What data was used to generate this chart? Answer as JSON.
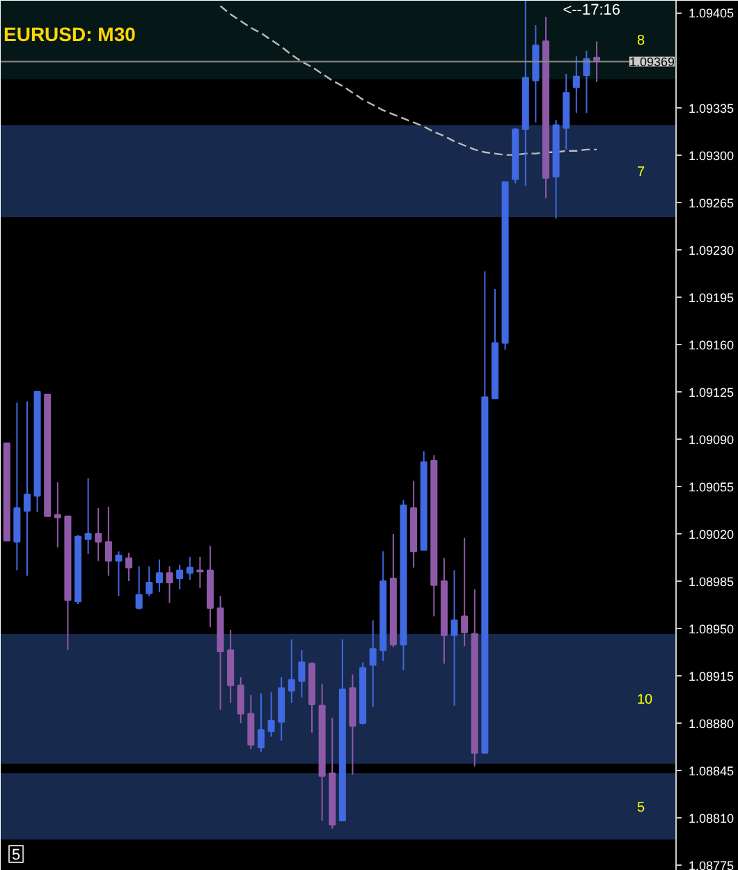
{
  "chart_data": {
    "type": "candlestick",
    "title": "EURUSD: M30",
    "categories": [
      null,
      null,
      null,
      null,
      null,
      null,
      null,
      null,
      null,
      null,
      null,
      null,
      null,
      null,
      null,
      null,
      null,
      null,
      null,
      null,
      null,
      null,
      null,
      null,
      null,
      null,
      null,
      null,
      null,
      null,
      null,
      null,
      null,
      null,
      null,
      null,
      null,
      null,
      null,
      null,
      null,
      null,
      null,
      null,
      null,
      null,
      null,
      null,
      null,
      null,
      null,
      null,
      null,
      null,
      null,
      null,
      null,
      null,
      null
    ],
    "series": [
      {
        "type": "candlestick",
        "ohlc": [
          [
            1.09087,
            1.09087,
            1.09015,
            1.09015
          ],
          [
            1.09014,
            1.09117,
            1.08993,
            1.09039
          ],
          [
            1.09037,
            1.09118,
            1.08989,
            1.09049
          ],
          [
            1.09048,
            1.09125,
            1.09036,
            1.09125
          ],
          [
            1.09123,
            1.09123,
            1.09033,
            1.09033
          ],
          [
            1.09034,
            1.09058,
            1.0901,
            1.09032
          ],
          [
            1.09033,
            1.09033,
            1.08934,
            1.08971
          ],
          [
            1.0897,
            1.09019,
            1.08968,
            1.09018
          ],
          [
            1.09016,
            1.09061,
            1.09005,
            1.0902
          ],
          [
            1.0902,
            1.09039,
            1.09,
            1.09014
          ],
          [
            1.09014,
            1.0904,
            1.08989,
            1.09
          ],
          [
            1.09,
            1.09007,
            1.08974,
            1.09004
          ],
          [
            1.09002,
            1.09006,
            1.08985,
            1.08995
          ],
          [
            1.08965,
            1.08996,
            1.08964,
            1.08975
          ],
          [
            1.08976,
            1.08996,
            1.08974,
            1.08984
          ],
          [
            1.08984,
            1.09001,
            1.08977,
            1.08991
          ],
          [
            1.08991,
            1.08996,
            1.08969,
            1.08984
          ],
          [
            1.08987,
            1.08997,
            1.08979,
            1.08993
          ],
          [
            1.08991,
            1.09003,
            1.08986,
            1.08995
          ],
          [
            1.08993,
            1.09003,
            1.0898,
            1.08992
          ],
          [
            1.08993,
            1.09011,
            1.08951,
            1.08965
          ],
          [
            1.08965,
            1.08974,
            1.0889,
            1.08933
          ],
          [
            1.08934,
            1.08949,
            1.08895,
            1.08908
          ],
          [
            1.08908,
            1.08914,
            1.0888,
            1.08887
          ],
          [
            1.08887,
            1.08901,
            1.08861,
            1.08864
          ],
          [
            1.08862,
            1.08902,
            1.08859,
            1.08875
          ],
          [
            1.08874,
            1.08903,
            1.0887,
            1.08882
          ],
          [
            1.08881,
            1.08914,
            1.08867,
            1.08906
          ],
          [
            1.08904,
            1.08942,
            1.08895,
            1.08912
          ],
          [
            1.08911,
            1.08934,
            1.08899,
            1.08925
          ],
          [
            1.08924,
            1.08925,
            1.08873,
            1.08894
          ],
          [
            1.08893,
            1.08909,
            1.08808,
            1.08841
          ],
          [
            1.08843,
            1.08884,
            1.08802,
            1.08805
          ],
          [
            1.08808,
            1.08942,
            1.08808,
            1.08905
          ],
          [
            1.08906,
            1.08916,
            1.08842,
            1.08878
          ],
          [
            1.0888,
            1.08925,
            1.08879,
            1.08921
          ],
          [
            1.08923,
            1.08956,
            1.08892,
            1.08935
          ],
          [
            1.08934,
            1.09007,
            1.08926,
            1.08985
          ],
          [
            1.08987,
            1.0902,
            1.08936,
            1.08938
          ],
          [
            1.08938,
            1.09045,
            1.08919,
            1.09041
          ],
          [
            1.09039,
            1.09059,
            1.08995,
            1.09007
          ],
          [
            1.09008,
            1.09081,
            1.09008,
            1.09073
          ],
          [
            1.09074,
            1.09078,
            1.08959,
            1.08982
          ],
          [
            1.08985,
            1.09002,
            1.08924,
            1.08945
          ],
          [
            1.08945,
            1.08993,
            1.08893,
            1.08956
          ],
          [
            1.08959,
            1.09017,
            1.08937,
            1.08947
          ],
          [
            1.08946,
            1.08979,
            1.08848,
            1.08858
          ],
          [
            1.08858,
            1.09214,
            1.08858,
            1.09121
          ],
          [
            1.0912,
            1.09201,
            1.0912,
            1.09161
          ],
          [
            1.09161,
            1.0928,
            1.09156,
            1.0928
          ],
          [
            1.09282,
            1.0932,
            1.09279,
            1.09319
          ],
          [
            1.09319,
            1.09414,
            1.09277,
            1.09357
          ],
          [
            1.09355,
            1.09396,
            1.09324,
            1.09381
          ],
          [
            1.09384,
            1.09402,
            1.09268,
            1.09283
          ],
          [
            1.09284,
            1.09326,
            1.09253,
            1.09322
          ],
          [
            1.0932,
            1.0936,
            1.09304,
            1.09346
          ],
          [
            1.0935,
            1.09373,
            1.09331,
            1.09358
          ],
          [
            1.09359,
            1.09377,
            1.09331,
            1.09371
          ],
          [
            1.09372,
            1.09384,
            1.09354,
            1.0937
          ]
        ],
        "colors": [
          "#8e5aa8",
          "#4169e1",
          "#4169e1",
          "#4169e1",
          "#8e5aa8",
          "#8e5aa8",
          "#8e5aa8",
          "#4169e1",
          "#4169e1",
          "#8e5aa8",
          "#8e5aa8",
          "#4169e1",
          "#8e5aa8",
          "#4169e1",
          "#4169e1",
          "#4169e1",
          "#8e5aa8",
          "#4169e1",
          "#4169e1",
          "#8e5aa8",
          "#8e5aa8",
          "#8e5aa8",
          "#8e5aa8",
          "#8e5aa8",
          "#8e5aa8",
          "#4169e1",
          "#4169e1",
          "#4169e1",
          "#4169e1",
          "#4169e1",
          "#8e5aa8",
          "#8e5aa8",
          "#8e5aa8",
          "#4169e1",
          "#8e5aa8",
          "#4169e1",
          "#4169e1",
          "#4169e1",
          "#8e5aa8",
          "#4169e1",
          "#8e5aa8",
          "#4169e1",
          "#8e5aa8",
          "#8e5aa8",
          "#4169e1",
          "#8e5aa8",
          "#8e5aa8",
          "#4169e1",
          "#4169e1",
          "#4169e1",
          "#4169e1",
          "#4169e1",
          "#4169e1",
          "#8e5aa8",
          "#4169e1",
          "#4169e1",
          "#4169e1",
          "#4169e1",
          "#8e5aa8"
        ]
      },
      {
        "type": "line",
        "color": "#bbbbbb",
        "line_style": "dashed",
        "values": [
          null,
          null,
          null,
          null,
          null,
          null,
          null,
          null,
          null,
          null,
          null,
          null,
          null,
          null,
          null,
          null,
          null,
          null,
          null,
          null,
          null,
          1.0941,
          1.09404,
          1.09399,
          1.09394,
          1.0939,
          1.09385,
          1.0938,
          1.09374,
          1.09369,
          1.09365,
          1.0936,
          1.09355,
          1.09351,
          1.09346,
          1.09341,
          1.09337,
          1.09333,
          1.0933,
          1.09327,
          1.09324,
          1.09321,
          1.09317,
          1.09314,
          1.0931,
          1.09307,
          1.09304,
          1.09302,
          1.09301,
          1.093,
          1.093,
          1.09301,
          1.09301,
          1.09302,
          1.09302,
          1.09303,
          1.09303,
          1.09304,
          1.09304
        ]
      }
    ],
    "ylim": [
      1.08771,
      1.09414
    ],
    "yticks": [
      1.09405,
      1.09335,
      {
        "value": 1.093,
        "label": "1.09300"
      },
      1.09265,
      {
        "value": 1.0923,
        "label": "1.09230"
      },
      1.09195,
      {
        "value": 1.0916,
        "label": "1.09160"
      },
      1.09125,
      {
        "value": 1.0909,
        "label": "1.09090"
      },
      1.09055,
      {
        "value": 1.0902,
        "label": "1.09020"
      },
      1.08985,
      {
        "value": 1.0895,
        "label": "1.08950"
      },
      1.08915,
      {
        "value": 1.0888,
        "label": "1.08880"
      },
      1.08845,
      {
        "value": 1.0881,
        "label": "1.08810"
      },
      1.08775
    ],
    "ref_lines": [
      {
        "axis": "y",
        "value": 1.09369,
        "label": "1.09369",
        "color": "#888888"
      }
    ],
    "bands": [
      {
        "axis": "y",
        "from": 1.09356,
        "to": 1.09414,
        "label": "8",
        "color": "#0b2a2a"
      },
      {
        "axis": "y",
        "from": 1.09254,
        "to": 1.09322,
        "label": "7",
        "color": "#2a4a8a"
      },
      {
        "axis": "y",
        "from": 1.0885,
        "to": 1.08946,
        "label": "10",
        "color": "#2a4a8a"
      },
      {
        "axis": "y",
        "from": 1.08794,
        "to": 1.08843,
        "label": "5",
        "color": "#2a4a8a"
      }
    ],
    "annotations": [
      "<--17:16",
      "5"
    ],
    "grid": false,
    "tick_labels": "y"
  }
}
